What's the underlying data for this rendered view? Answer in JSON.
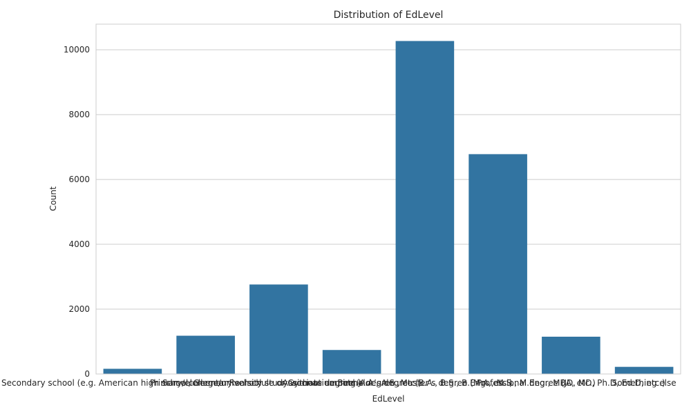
{
  "chart_data": {
    "type": "bar",
    "title": "Distribution of EdLevel",
    "xlabel": "EdLevel",
    "ylabel": "Count",
    "categories": [
      "Secondary school (e.g. American high school, German Realschule or Gymnasium, etc.)",
      "Primary/elementary school",
      "Some college/university study without earning a degree",
      "Associate degree (A.A., A.S., etc.)",
      "Bachelor’s degree (B.A., B.S., B.Eng., etc.)",
      "Master’s degree (M.A., M.S., M.Eng., MBA, etc.)",
      "Professional degree (JD, MD, Ph.D, Ed.D, etc.)",
      "Something else"
    ],
    "values": [
      160,
      1180,
      2760,
      740,
      10270,
      6780,
      1150,
      220
    ],
    "yticks": [
      0,
      2000,
      4000,
      6000,
      8000,
      10000
    ],
    "ylim": [
      0,
      10790
    ],
    "grid": true,
    "colors": {
      "bar": "#3274a1",
      "grid": "#cccccc",
      "text": "#262626"
    }
  }
}
